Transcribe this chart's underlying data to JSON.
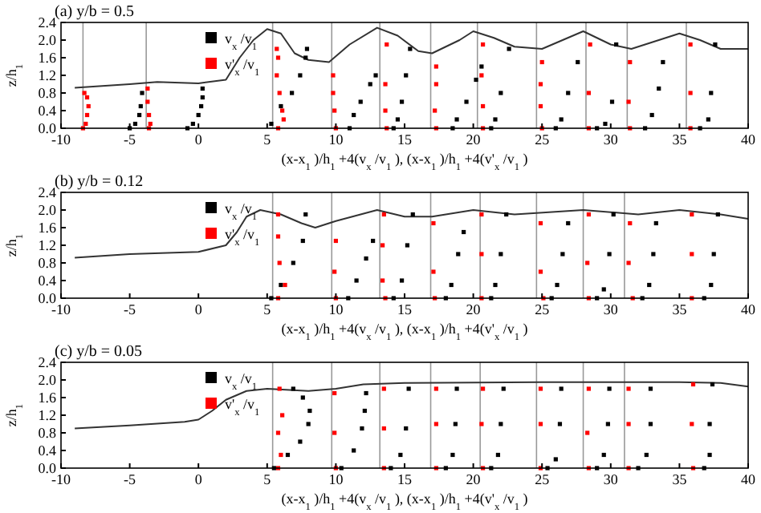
{
  "chart_data": [
    {
      "type": "scatter",
      "title": "(a) y/b = 0.5",
      "xlabel": "(x-x$_{1}$)/h$_{1}$+4(v$_{x}$/v$_{1}$), (x-x$_{1}$)/h$_{1}$+4(v'$_{x}$/v$_{1}$)",
      "ylabel": "z/h$_{1}$",
      "xlim": [
        -10,
        40
      ],
      "ylim": [
        0,
        2.4
      ],
      "xticks": [
        -10,
        -5,
        0,
        5,
        10,
        15,
        20,
        25,
        30,
        35,
        40
      ],
      "yticks": [
        {
          "value": 0,
          "label": "0.0"
        },
        {
          "value": 0.4,
          "label": "0.4"
        },
        {
          "value": 0.8,
          "label": "0.8"
        },
        {
          "value": 1.2,
          "label": "1.2"
        },
        {
          "value": 1.6,
          "label": "1.6"
        },
        {
          "value": 2,
          "label": "2.0"
        },
        {
          "value": 2.4,
          "label": "2.4"
        }
      ],
      "legend": "top left",
      "marker": "square",
      "ref_lines": [
        {
          "axis": "x",
          "value": -8.4,
          "color": "#999999"
        },
        {
          "axis": "x",
          "value": -3.8,
          "color": "#999999"
        },
        {
          "axis": "x",
          "value": 5.4,
          "color": "#999999"
        },
        {
          "axis": "x",
          "value": 9.7,
          "color": "#999999"
        },
        {
          "axis": "x",
          "value": 13.2,
          "color": "#999999"
        },
        {
          "axis": "x",
          "value": 16.9,
          "color": "#999999"
        },
        {
          "axis": "x",
          "value": 20.3,
          "color": "#999999"
        },
        {
          "axis": "x",
          "value": 24.6,
          "color": "#999999"
        },
        {
          "axis": "x",
          "value": 28.2,
          "color": "#999999"
        },
        {
          "axis": "x",
          "value": 31.2,
          "color": "#999999"
        },
        {
          "axis": "x",
          "value": 35.5,
          "color": "#999999"
        }
      ],
      "series": [
        {
          "type": "line",
          "color": "#333333",
          "marker": "none",
          "x": [
            -9,
            -5,
            -3,
            0,
            2,
            3,
            4,
            5,
            6,
            7,
            8,
            9.5,
            11,
            13,
            14.5,
            16,
            17,
            19,
            20,
            21.5,
            23,
            25,
            26.5,
            28,
            30,
            31.5,
            33,
            35,
            36.5,
            38,
            40
          ],
          "values": [
            0.92,
            1.0,
            1.05,
            1.02,
            1.1,
            1.6,
            2.0,
            2.25,
            2.15,
            1.7,
            1.55,
            1.5,
            1.9,
            2.28,
            2.1,
            1.75,
            1.7,
            2.0,
            2.2,
            2.05,
            1.85,
            1.8,
            2.0,
            2.2,
            1.9,
            1.8,
            1.95,
            2.15,
            2.0,
            1.8,
            1.8
          ]
        },
        {
          "name": "v$_{x}$/v$_{1}$",
          "color": "#000000",
          "x": [
            -5,
            -4.6,
            -4.3,
            -4.2,
            -4.1,
            -0.8,
            -0.4,
            0,
            0.2,
            0.3,
            0.3,
            5.3,
            6,
            6.8,
            7.4,
            7.8,
            7.9,
            11,
            11.3,
            11.8,
            12.5,
            12.9,
            14.2,
            14.5,
            14.8,
            15.1,
            15.4,
            18.5,
            18.8,
            19.5,
            20.2,
            20.6,
            21.3,
            21.6,
            22,
            22.6,
            26,
            26.4,
            26.9,
            27.6,
            29,
            29.6,
            30.1,
            30.4,
            32.5,
            33,
            33.5,
            33.8,
            36.5,
            37.1,
            37.3,
            37.6
          ],
          "values": [
            0,
            0.1,
            0.3,
            0.5,
            0.8,
            0,
            0.1,
            0.3,
            0.5,
            0.7,
            0.9,
            0.1,
            0.5,
            0.8,
            1.2,
            1.6,
            1.8,
            0,
            0.3,
            0.6,
            1.0,
            1.2,
            0,
            0.2,
            0.6,
            1.2,
            1.8,
            0,
            0.2,
            0.6,
            1.1,
            1.4,
            0,
            0.2,
            0.8,
            1.8,
            0,
            0.2,
            0.8,
            1.5,
            0,
            0.1,
            0.6,
            1.9,
            0,
            0.3,
            0.9,
            1.5,
            0,
            0.2,
            0.8,
            1.9
          ]
        },
        {
          "name": "v'$_{x}$/v$_{1}$",
          "color": "#ff0000",
          "x": [
            -8.4,
            -8.2,
            -8.1,
            -8.0,
            -8.1,
            -8.3,
            -3.6,
            -3.5,
            -3.6,
            -3.7,
            -3.7,
            5.8,
            6.2,
            6.1,
            5.9,
            5.7,
            5.8,
            5.7,
            10,
            9.9,
            9.8,
            9.8,
            13.7,
            13.6,
            13.6,
            13.7,
            17.3,
            17.2,
            17.3,
            17.3,
            20.7,
            20.7,
            20.6,
            20.7,
            25,
            24.9,
            24.9,
            25.0,
            28.4,
            28.4,
            28.5,
            31.4,
            31.3,
            31.4,
            35.8,
            35.8,
            35.8
          ],
          "values": [
            0,
            0.1,
            0.3,
            0.5,
            0.7,
            0.8,
            0,
            0.1,
            0.3,
            0.6,
            0.9,
            0,
            0.2,
            0.4,
            0.8,
            1.2,
            1.6,
            1.8,
            0,
            0.4,
            0.8,
            1.2,
            0,
            0.4,
            1.0,
            1.9,
            0,
            0.4,
            1.0,
            1.4,
            0,
            0.5,
            1.2,
            1.9,
            0,
            0.5,
            1.0,
            1.5,
            0,
            0.8,
            1.9,
            0,
            0.6,
            1.5,
            0,
            0.8,
            1.9
          ]
        }
      ]
    },
    {
      "type": "scatter",
      "title": "(b) y/b = 0.12",
      "xlabel": "(x-x$_{1}$)/h$_{1}$+4(v$_{x}$/v$_{1}$), (x-x$_{1}$)/h$_{1}$+4(v'$_{x}$/v$_{1}$)",
      "ylabel": "z/h$_{1}$",
      "xlim": [
        -10,
        40
      ],
      "ylim": [
        0,
        2.4
      ],
      "xticks": [
        -10,
        -5,
        0,
        5,
        10,
        15,
        20,
        25,
        30,
        35,
        40
      ],
      "yticks": [
        {
          "value": 0,
          "label": "0.0"
        },
        {
          "value": 0.4,
          "label": "0.4"
        },
        {
          "value": 0.8,
          "label": "0.8"
        },
        {
          "value": 1.2,
          "label": "1.2"
        },
        {
          "value": 1.6,
          "label": "1.6"
        },
        {
          "value": 2,
          "label": "2.0"
        },
        {
          "value": 2.4,
          "label": "2.4"
        }
      ],
      "legend": "top left",
      "marker": "square",
      "ref_lines": [
        {
          "axis": "x",
          "value": 5.4,
          "color": "#999999"
        },
        {
          "axis": "x",
          "value": 9.7,
          "color": "#999999"
        },
        {
          "axis": "x",
          "value": 13.2,
          "color": "#999999"
        },
        {
          "axis": "x",
          "value": 16.9,
          "color": "#999999"
        },
        {
          "axis": "x",
          "value": 20.5,
          "color": "#999999"
        },
        {
          "axis": "x",
          "value": 24.6,
          "color": "#999999"
        },
        {
          "axis": "x",
          "value": 28.0,
          "color": "#999999"
        },
        {
          "axis": "x",
          "value": 31.0,
          "color": "#999999"
        }
      ],
      "series": [
        {
          "type": "line",
          "color": "#333333",
          "marker": "none",
          "x": [
            -9,
            -5,
            0,
            2,
            2.8,
            3.5,
            4.5,
            6,
            7.5,
            8.5,
            10,
            13,
            15,
            17,
            20,
            23,
            28,
            32,
            35,
            38,
            40
          ],
          "values": [
            0.92,
            1.0,
            1.05,
            1.2,
            1.5,
            1.85,
            2.0,
            1.9,
            1.7,
            1.6,
            1.75,
            2.0,
            1.85,
            1.85,
            2.0,
            1.9,
            2.0,
            1.9,
            2.0,
            1.9,
            1.8
          ]
        },
        {
          "name": "v$_{x}$/v$_{1}$",
          "color": "#000000",
          "x": [
            5.3,
            6,
            6.9,
            7.6,
            7.8,
            10.9,
            11.5,
            12.2,
            12.7,
            14.2,
            14.8,
            15.2,
            15.6,
            18,
            18.4,
            18.9,
            19.3,
            21.3,
            21.6,
            22,
            22.4,
            25.7,
            26.1,
            26.5,
            26.9,
            29,
            29.5,
            29.9,
            30.2,
            32.3,
            32.8,
            33.1,
            33.3,
            36.8,
            37.3,
            37.5,
            37.8
          ],
          "values": [
            0,
            0.3,
            0.8,
            1.3,
            1.9,
            0,
            0.4,
            0.9,
            1.3,
            0,
            0.4,
            1.2,
            1.9,
            0,
            0.3,
            1.0,
            1.5,
            0,
            0.3,
            1.0,
            1.9,
            0,
            0.3,
            1.0,
            1.7,
            0,
            0.2,
            1.0,
            1.9,
            0,
            0.3,
            1.0,
            1.7,
            0,
            0.3,
            1.0,
            1.9
          ]
        },
        {
          "name": "v'$_{x}$/v$_{1}$",
          "color": "#ff0000",
          "x": [
            5.8,
            6.3,
            5.9,
            5.8,
            5.8,
            10,
            9.9,
            10,
            13.6,
            13.4,
            13.4,
            13.5,
            17.2,
            17.1,
            17.1,
            20.6,
            20.6,
            20.6,
            25.1,
            24.9,
            24.9,
            28.4,
            28.3,
            28.4,
            31.6,
            31.3,
            31.4,
            35.9,
            35.9,
            35.9
          ],
          "values": [
            0,
            0.3,
            0.8,
            1.4,
            1.9,
            0,
            0.6,
            1.3,
            0,
            0.4,
            1.2,
            1.9,
            0,
            0.6,
            1.7,
            0,
            1.0,
            1.9,
            0,
            0.6,
            1.7,
            0,
            0.8,
            1.9,
            0,
            0.8,
            1.7,
            0,
            1.0,
            1.9
          ]
        }
      ]
    },
    {
      "type": "scatter",
      "title": "(c) y/b = 0.05",
      "xlabel": "(x-x$_{1}$)/h$_{1}$+4(v$_{x}$/v$_{1}$), (x-x$_{1}$)/h$_{1}$+4(v'$_{x}$/v$_{1}$)",
      "ylabel": "z/h$_{1}$",
      "xlim": [
        -10,
        40
      ],
      "ylim": [
        0,
        2.4
      ],
      "xticks": [
        -10,
        -5,
        0,
        5,
        10,
        15,
        20,
        25,
        30,
        35,
        40
      ],
      "yticks": [
        {
          "value": 0,
          "label": "0.0"
        },
        {
          "value": 0.4,
          "label": "0.4"
        },
        {
          "value": 0.8,
          "label": "0.8"
        },
        {
          "value": 1.2,
          "label": "1.2"
        },
        {
          "value": 1.6,
          "label": "1.6"
        },
        {
          "value": 2,
          "label": "2.0"
        },
        {
          "value": 2.4,
          "label": "2.4"
        }
      ],
      "legend": "top left",
      "marker": "square",
      "ref_lines": [
        {
          "axis": "x",
          "value": 5.4,
          "color": "#999999"
        },
        {
          "axis": "x",
          "value": 9.7,
          "color": "#999999"
        },
        {
          "axis": "x",
          "value": 13.2,
          "color": "#999999"
        },
        {
          "axis": "x",
          "value": 16.9,
          "color": "#999999"
        },
        {
          "axis": "x",
          "value": 20.5,
          "color": "#999999"
        },
        {
          "axis": "x",
          "value": 24.6,
          "color": "#999999"
        },
        {
          "axis": "x",
          "value": 28.0,
          "color": "#999999"
        },
        {
          "axis": "x",
          "value": 31.0,
          "color": "#999999"
        }
      ],
      "series": [
        {
          "type": "line",
          "color": "#333333",
          "marker": "none",
          "x": [
            -9,
            -5,
            -1,
            0,
            1,
            2,
            3.5,
            5,
            8,
            10,
            12,
            15,
            25,
            35,
            38,
            40
          ],
          "values": [
            0.9,
            0.97,
            1.05,
            1.1,
            1.3,
            1.55,
            1.75,
            1.8,
            1.75,
            1.8,
            1.9,
            1.93,
            1.95,
            1.95,
            1.93,
            1.85
          ]
        },
        {
          "name": "v$_{x}$/v$_{1}$",
          "color": "#000000",
          "x": [
            5.5,
            6.5,
            7.4,
            8,
            8.1,
            7.6,
            6.9,
            10.4,
            11.3,
            11.9,
            12.1,
            12.2,
            14,
            14.7,
            15.1,
            15.3,
            18,
            18.5,
            18.7,
            18.8,
            21.3,
            21.8,
            22,
            22.2,
            25.4,
            26,
            26.3,
            26.4,
            29,
            29.5,
            29.8,
            29.9,
            32,
            32.6,
            32.9,
            32.9,
            36.8,
            37.2,
            37.2,
            37.4
          ],
          "values": [
            0,
            0.3,
            0.6,
            1.0,
            1.3,
            1.6,
            1.8,
            0,
            0.4,
            0.9,
            1.3,
            1.7,
            0,
            0.3,
            0.9,
            1.8,
            0,
            0.3,
            1.0,
            1.8,
            0,
            0.3,
            1.0,
            1.8,
            0,
            0.2,
            1.0,
            1.8,
            0,
            0.3,
            1.0,
            1.8,
            0,
            0.3,
            1.0,
            1.8,
            0,
            0.3,
            1.0,
            1.9
          ]
        },
        {
          "name": "v'$_{x}$/v$_{1}$",
          "color": "#ff0000",
          "x": [
            5.8,
            6,
            5.8,
            6.1,
            5.9,
            10,
            9.9,
            9.9,
            13.5,
            13.5,
            13.5,
            17.3,
            17.3,
            17.3,
            20.7,
            20.6,
            20.7,
            24.9,
            24.9,
            24.9,
            28.4,
            28.3,
            28.4,
            31.3,
            31.3,
            31.3,
            36,
            35.9,
            36
          ],
          "values": [
            0,
            0.3,
            0.8,
            1.2,
            1.8,
            0,
            0.8,
            1.7,
            0,
            0.9,
            1.8,
            0,
            1.0,
            1.8,
            0,
            1.0,
            1.8,
            0,
            1.0,
            1.8,
            0,
            0.8,
            1.8,
            0,
            1.0,
            1.8,
            0,
            1.0,
            1.9
          ]
        }
      ]
    }
  ]
}
